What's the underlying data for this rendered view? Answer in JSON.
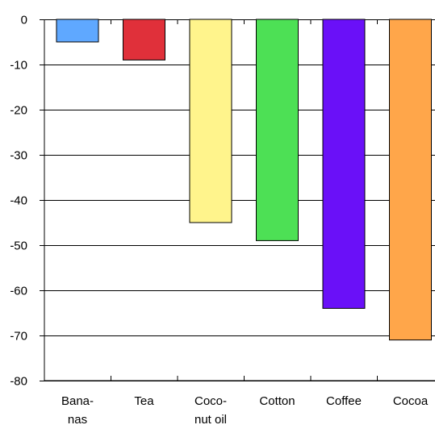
{
  "chart_data": {
    "type": "bar",
    "title": "",
    "xlabel": "",
    "ylabel": "",
    "ylim": [
      -80,
      0
    ],
    "yticks": [
      "0",
      "-10",
      "-20",
      "-30",
      "-40",
      "-50",
      "-60",
      "-70",
      "-80"
    ],
    "ytick_values": [
      0,
      -10,
      -20,
      -30,
      -40,
      -50,
      -60,
      -70,
      -80
    ],
    "grid": "horizontal",
    "legend": "none",
    "categories": [
      {
        "lines": [
          "Bana-",
          "nas"
        ],
        "value": -5,
        "color": "#5fa8ff"
      },
      {
        "lines": [
          "Tea"
        ],
        "value": -9,
        "color": "#e0303a"
      },
      {
        "lines": [
          "Coco-",
          "nut oil"
        ],
        "value": -45,
        "color": "#fff48c"
      },
      {
        "lines": [
          "Cotton"
        ],
        "value": -49,
        "color": "#4de055"
      },
      {
        "lines": [
          "Coffee"
        ],
        "value": -64,
        "color": "#6a10f8"
      },
      {
        "lines": [
          "Cocoa"
        ],
        "value": -71,
        "color": "#ffa64a"
      }
    ]
  }
}
